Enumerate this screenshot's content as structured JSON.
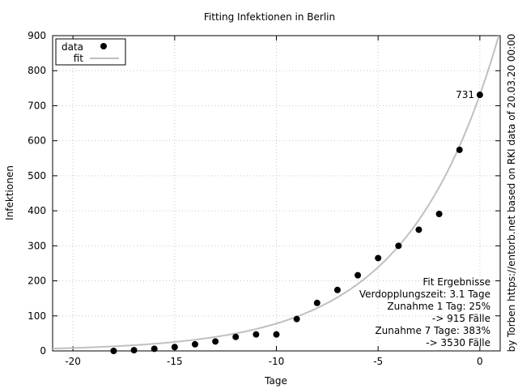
{
  "chart_data": {
    "type": "scatter",
    "title": "Fitting Infektionen in Berlin",
    "xlabel": "Tage",
    "ylabel": "Infektionen",
    "right_label": "by Torben https://entorb.net based on RKI data of 20.03.20 00:00",
    "xlim": [
      -21,
      1
    ],
    "ylim": [
      0,
      900
    ],
    "x_ticks": [
      -20,
      -15,
      -10,
      -5,
      0
    ],
    "y_ticks": [
      0,
      100,
      200,
      300,
      400,
      500,
      600,
      700,
      800,
      900
    ],
    "grid": true,
    "legend_position": "top-left",
    "series": [
      {
        "name": "data",
        "kind": "points",
        "color": "#000000",
        "x": [
          -18,
          -17,
          -16,
          -15,
          -14,
          -13,
          -12,
          -11,
          -10,
          -9,
          -8,
          -7,
          -6,
          -5,
          -4,
          -3,
          -2,
          -1,
          0
        ],
        "y": [
          0,
          2,
          6,
          11,
          19,
          27,
          40,
          47,
          47,
          91,
          137,
          174,
          216,
          265,
          300,
          346,
          391,
          574,
          731
        ]
      },
      {
        "name": "fit",
        "kind": "curve",
        "color": "#c0c0c0",
        "model": "exponential",
        "a": 731,
        "doubling_days": 3.1
      }
    ],
    "annotations": [
      {
        "x": 0,
        "y": 731,
        "text": "731"
      }
    ],
    "fit_box": {
      "lines": [
        "Fit Ergebnisse",
        "Verdopplungszeit: 3.1 Tage",
        "Zunahme 1 Tag: 25%",
        "-> 915 Fälle",
        "Zunahme 7 Tage: 383%",
        "-> 3530 Fälle"
      ]
    }
  }
}
